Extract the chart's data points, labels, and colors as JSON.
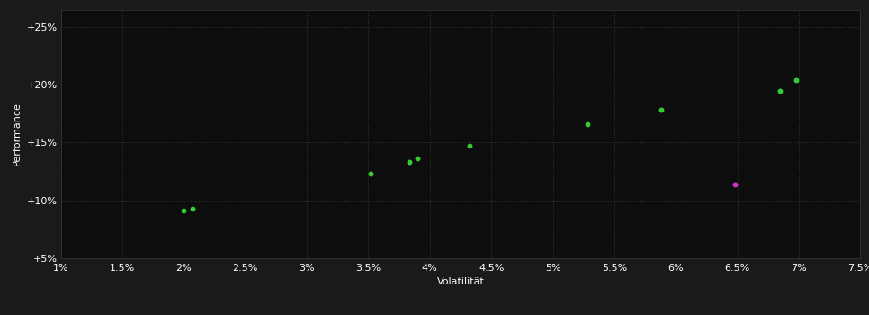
{
  "background_color": "#1a1a1a",
  "plot_bg_color": "#0d0d0d",
  "grid_color": "#3a3a3a",
  "xlabel": "Volatilität",
  "ylabel": "Performance",
  "xlim": [
    0.01,
    0.075
  ],
  "ylim": [
    0.05,
    0.265
  ],
  "xticks": [
    0.01,
    0.015,
    0.02,
    0.025,
    0.03,
    0.035,
    0.04,
    0.045,
    0.05,
    0.055,
    0.06,
    0.065,
    0.07,
    0.075
  ],
  "yticks": [
    0.05,
    0.1,
    0.15,
    0.2,
    0.25
  ],
  "ytick_labels": [
    "+5%",
    "+10%",
    "+15%",
    "+20%",
    "+25%"
  ],
  "xtick_labels": [
    "1%",
    "1.5%",
    "2%",
    "2.5%",
    "3%",
    "3.5%",
    "4%",
    "4.5%",
    "5%",
    "5.5%",
    "6%",
    "6.5%",
    "7%",
    "7.5%"
  ],
  "green_points": [
    [
      0.02,
      0.091
    ],
    [
      0.0207,
      0.093
    ],
    [
      0.0352,
      0.123
    ],
    [
      0.0383,
      0.133
    ],
    [
      0.039,
      0.136
    ],
    [
      0.0432,
      0.147
    ],
    [
      0.0528,
      0.166
    ],
    [
      0.0588,
      0.178
    ],
    [
      0.0685,
      0.195
    ],
    [
      0.0698,
      0.204
    ]
  ],
  "magenta_points": [
    [
      0.0648,
      0.114
    ]
  ],
  "dot_size": 18,
  "green_color": "#33cc33",
  "magenta_color": "#cc33cc",
  "text_color": "#ffffff",
  "grid_alpha": 1.0,
  "grid_linestyle": ":",
  "grid_linewidth": 0.6,
  "xlabel_fontsize": 8,
  "ylabel_fontsize": 8,
  "tick_fontsize": 8
}
